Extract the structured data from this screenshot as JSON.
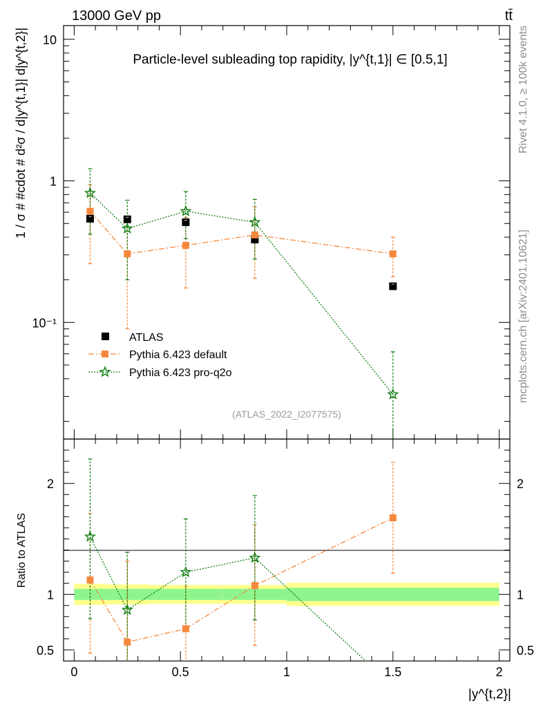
{
  "header": {
    "energy": "13000 GeV pp",
    "process": "tt̄",
    "rivet_label": "Rivet 4.1.0, ≥ 100k events",
    "mcplots_label": "mcplots.cern.ch [arXiv:2401.10621]",
    "analysis_ref": "(ATLAS_2022_I2077575)"
  },
  "chart_data": {
    "type": "scatter",
    "title": "Particle-level subleading top rapidity, |y^{t,1}| ∈ [0.5,1]",
    "xlabel": "|y^{t,2}|",
    "ylabel": "1 / σ # #cdot # d²σ / d|y^{t,1}| d|y^{t,2}|",
    "ratio_ylabel": "Ratio to ATLAS",
    "xlim": [
      -0.05,
      2.05
    ],
    "ylim": [
      0.015,
      12.5
    ],
    "ratio_ylim": [
      0.4,
      2.4
    ],
    "yscale": "log",
    "x_ticks": [
      "0",
      "0.5",
      "1",
      "1.5",
      "2"
    ],
    "x_tick_values": [
      0,
      0.5,
      1,
      1.5,
      2
    ],
    "y_ticks": [
      "10",
      "1",
      "10⁻¹"
    ],
    "y_tick_values": [
      10,
      1,
      0.1
    ],
    "ratio_y_ticks": [
      "2",
      "1",
      "0.5"
    ],
    "ratio_y_tick_values": [
      2,
      1,
      0.5
    ],
    "legend_position": "bottom-left",
    "data": {
      "name": "ATLAS",
      "x": [
        0.075,
        0.25,
        0.525,
        0.85,
        1.5
      ],
      "xerr": [
        0.075,
        0.1,
        0.175,
        0.15,
        0.5
      ],
      "y": [
        0.54,
        0.535,
        0.51,
        0.385,
        0.18
      ],
      "band_inner": [
        0.05,
        0.05,
        0.05,
        0.05,
        0.06
      ],
      "band_outer": [
        0.095,
        0.09,
        0.085,
        0.085,
        0.105
      ],
      "color": "#000000"
    },
    "series": [
      {
        "name": "Pythia 6.423 default",
        "color": "#f5883c",
        "marker": "square",
        "x": [
          0.075,
          0.25,
          0.525,
          0.85,
          1.5
        ],
        "y": [
          0.61,
          0.305,
          0.35,
          0.415,
          0.305
        ],
        "yerr_low": [
          0.35,
          0.215,
          0.175,
          0.21,
          0.095
        ],
        "yerr_high": [
          0.33,
          0.235,
          0.2,
          0.24,
          0.095
        ],
        "ratio": [
          1.13,
          0.57,
          0.69,
          1.08,
          1.69
        ],
        "ratio_err_low": [
          0.66,
          0.8,
          0.4,
          0.54,
          0.5
        ],
        "ratio_err_high": [
          0.6,
          0.73,
          0.38,
          0.55,
          0.5
        ]
      },
      {
        "name": "Pythia 6.423 pro-q2o",
        "color": "#0e7c0e",
        "marker": "star",
        "x": [
          0.075,
          0.25,
          0.525,
          0.85,
          1.5
        ],
        "y": [
          0.82,
          0.46,
          0.61,
          0.51,
          0.031
        ],
        "yerr_low": [
          0.4,
          0.26,
          0.22,
          0.23,
          0.031
        ],
        "yerr_high": [
          0.4,
          0.27,
          0.23,
          0.23,
          0.031
        ],
        "ratio": [
          1.52,
          0.86,
          1.2,
          1.33,
          0.17
        ],
        "ratio_err_low": [
          0.74,
          0.55,
          0.53,
          0.56,
          0.17
        ],
        "ratio_err_high": [
          0.7,
          0.52,
          0.48,
          0.56,
          0.17
        ]
      }
    ]
  }
}
